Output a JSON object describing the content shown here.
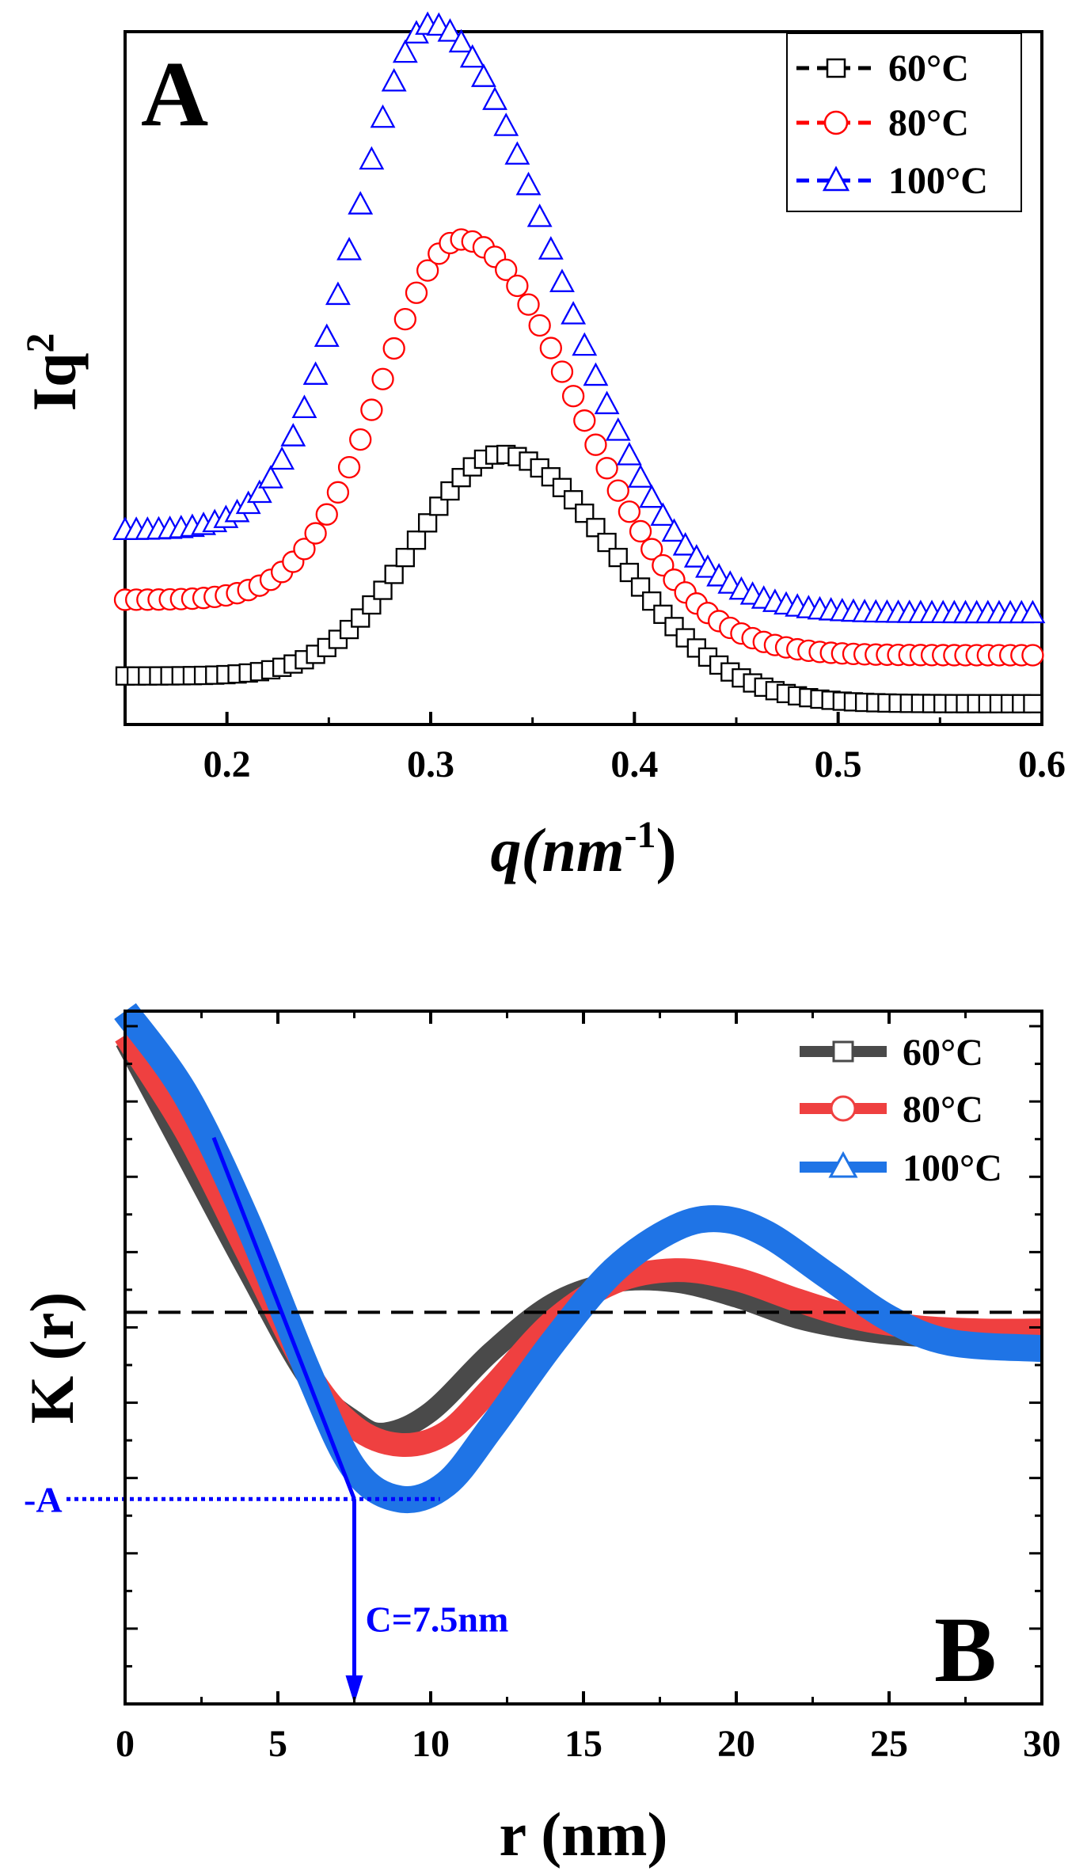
{
  "colors": {
    "black": "#000000",
    "red": "#ff0000",
    "blue": "#0000ff",
    "thick_gray": "#4a4a4a",
    "thick_red": "#ef4040",
    "thick_blue": "#1f74e6",
    "annotation_blue": "#0000ff"
  },
  "chart_data": [
    {
      "type": "scatter",
      "panel_label": "A",
      "title": "",
      "xlabel": "q(nm",
      "xlabel_superscript": "-1",
      "xlabel_close": ")",
      "ylabel": "Iq",
      "ylabel_superscript": "2",
      "xlim": [
        0.15,
        0.6
      ],
      "ylim": [
        0,
        1
      ],
      "x_ticks": [
        0.2,
        0.3,
        0.4,
        0.5,
        0.6
      ],
      "x_tick_labels": [
        "0.2",
        "0.3",
        "0.4",
        "0.5",
        "0.6"
      ],
      "y_tick_labels": [],
      "legend_position": "top-right",
      "series": [
        {
          "name": "60°C",
          "marker": "square",
          "color": "black",
          "curve": {
            "baseline": 0.03,
            "left_level": 0.07,
            "amplitude": 0.36,
            "peak_q": 0.335,
            "width_left": 0.06,
            "width_right": 0.078
          }
        },
        {
          "name": "80°C",
          "marker": "circle",
          "color": "red",
          "curve": {
            "baseline": 0.1,
            "left_level": 0.18,
            "amplitude": 0.6,
            "peak_q": 0.315,
            "width_left": 0.055,
            "width_right": 0.08
          }
        },
        {
          "name": "100°C",
          "marker": "triangle",
          "color": "blue",
          "curve": {
            "baseline": 0.16,
            "left_level": 0.28,
            "amplitude": 0.85,
            "peak_q": 0.3,
            "width_left": 0.052,
            "width_right": 0.085
          }
        }
      ]
    },
    {
      "type": "line",
      "panel_label": "B",
      "title": "",
      "xlabel": "r (nm)",
      "ylabel": "K (r)",
      "xlim": [
        0,
        30
      ],
      "ylim": [
        -1.3,
        1.0
      ],
      "x_ticks": [
        0,
        5,
        10,
        15,
        20,
        25,
        30
      ],
      "x_tick_labels": [
        "0",
        "5",
        "10",
        "15",
        "20",
        "25",
        "30"
      ],
      "y_tick_labels": [],
      "zero_line": 0,
      "legend_position": "top-right",
      "series": [
        {
          "name": "60°C",
          "marker": "square",
          "color": "thick_gray",
          "x": [
            0,
            2,
            4,
            6,
            7.5,
            8.5,
            10,
            12,
            14,
            16,
            18,
            20,
            22,
            24,
            26,
            28,
            30
          ],
          "y": [
            0.9,
            0.52,
            0.14,
            -0.22,
            -0.36,
            -0.4,
            -0.33,
            -0.13,
            0.03,
            0.1,
            0.1,
            0.05,
            -0.02,
            -0.06,
            -0.08,
            -0.08,
            -0.07
          ]
        },
        {
          "name": "80°C",
          "marker": "circle",
          "color": "thick_red",
          "x": [
            0,
            2,
            4,
            6,
            7.5,
            9,
            10.5,
            12,
            14,
            16,
            18,
            20,
            22,
            24,
            26,
            28,
            30
          ],
          "y": [
            0.92,
            0.6,
            0.2,
            -0.2,
            -0.38,
            -0.44,
            -0.4,
            -0.25,
            -0.03,
            0.1,
            0.14,
            0.11,
            0.04,
            -0.02,
            -0.05,
            -0.06,
            -0.06
          ]
        },
        {
          "name": "100°C",
          "marker": "triangle",
          "color": "thick_blue",
          "x": [
            0,
            2,
            4,
            6,
            7.5,
            9,
            10.5,
            12,
            14,
            16,
            18,
            19.5,
            21,
            23,
            25,
            27,
            30
          ],
          "y": [
            1.0,
            0.72,
            0.3,
            -0.2,
            -0.52,
            -0.62,
            -0.57,
            -0.38,
            -0.1,
            0.14,
            0.28,
            0.31,
            0.26,
            0.12,
            -0.02,
            -0.1,
            -0.12
          ]
        }
      ],
      "annotations": {
        "minus_a_label": "-A",
        "minus_a_value": -0.62,
        "minus_a_line_end_x": 10.3,
        "c_label": "C=7.5nm",
        "c_value": 7.5,
        "tangent": {
          "x1": 2.9,
          "y1": 0.58,
          "x2": 7.5,
          "y2": -0.62
        }
      }
    }
  ]
}
